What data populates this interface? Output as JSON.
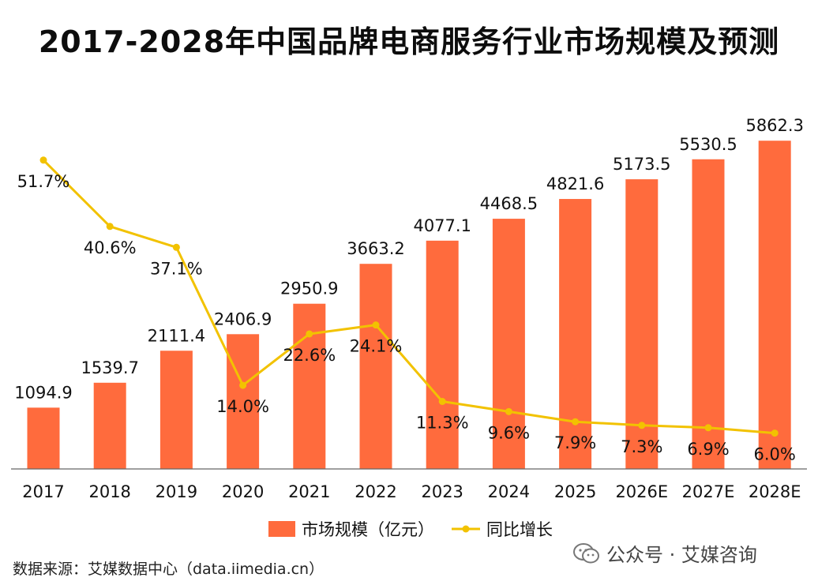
{
  "title": "2017-2028年中国品牌电商服务行业市场规模及预测",
  "source": "数据来源：艾媒数据中心（data.iimedia.cn）",
  "watermark": "公众号 · 艾媒咨询",
  "colors": {
    "bar": "#ff6b3d",
    "line": "#f2c200",
    "axis": "#666666"
  },
  "chart_data": {
    "type": "bar",
    "title": "2017-2028年中国品牌电商服务行业市场规模及预测",
    "categories": [
      "2017",
      "2018",
      "2019",
      "2020",
      "2021",
      "2022",
      "2023",
      "2024",
      "2025",
      "2026E",
      "2027E",
      "2028E"
    ],
    "series": [
      {
        "name": "市场规模（亿元）",
        "type": "bar",
        "values": [
          1094.9,
          1539.7,
          2111.4,
          2406.9,
          2950.9,
          3663.2,
          4077.1,
          4468.5,
          4821.6,
          5173.5,
          5530.5,
          5862.3
        ],
        "labels": [
          "1094.9",
          "1539.7",
          "2111.4",
          "2406.9",
          "2950.9",
          "3663.2",
          "4077.1",
          "4468.5",
          "4821.6",
          "5173.5",
          "5530.5",
          "5862.3"
        ]
      },
      {
        "name": "同比增长",
        "type": "line",
        "values": [
          51.7,
          40.6,
          37.1,
          14.0,
          22.6,
          24.1,
          11.3,
          9.6,
          7.9,
          7.3,
          6.9,
          6.0
        ],
        "labels": [
          "51.7%",
          "40.6%",
          "37.1%",
          "14.0%",
          "22.6%",
          "24.1%",
          "11.3%",
          "9.6%",
          "7.9%",
          "7.3%",
          "6.9%",
          "6.0%"
        ]
      }
    ],
    "ylim_bar": [
      0,
      6500
    ],
    "ylim_line": [
      0,
      60
    ],
    "grid": false,
    "legend": "bottom-center",
    "legend_entries": [
      "市场规模（亿元）",
      "同比增长"
    ]
  }
}
